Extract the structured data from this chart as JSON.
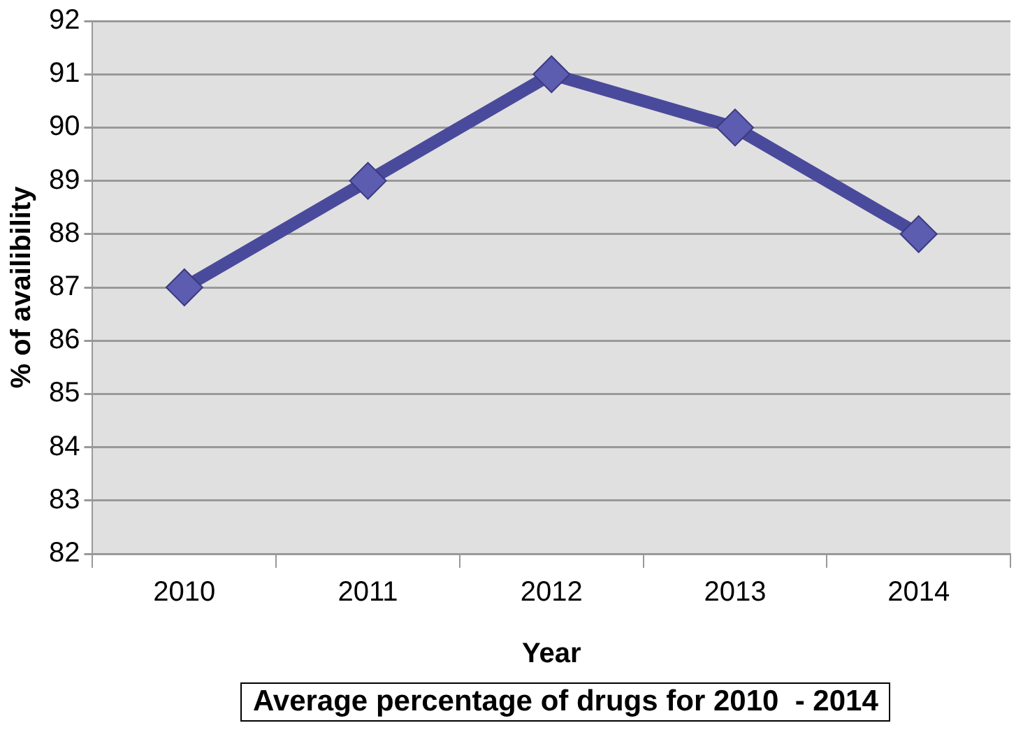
{
  "chart_data": {
    "type": "line",
    "title": "Average percentage of drugs for 2010  - 2014",
    "xlabel": "Year",
    "ylabel": "% of availibility",
    "categories": [
      "2010",
      "2011",
      "2012",
      "2013",
      "2014"
    ],
    "series": [
      {
        "color": "#4a4a9c",
        "values": [
          87,
          89,
          91,
          90,
          88
        ]
      }
    ],
    "ylim": [
      82,
      92
    ],
    "yticks": [
      82,
      83,
      84,
      85,
      86,
      87,
      88,
      89,
      90,
      91,
      92
    ],
    "grid": "y",
    "marker": "diamond",
    "line_style": "solid"
  }
}
